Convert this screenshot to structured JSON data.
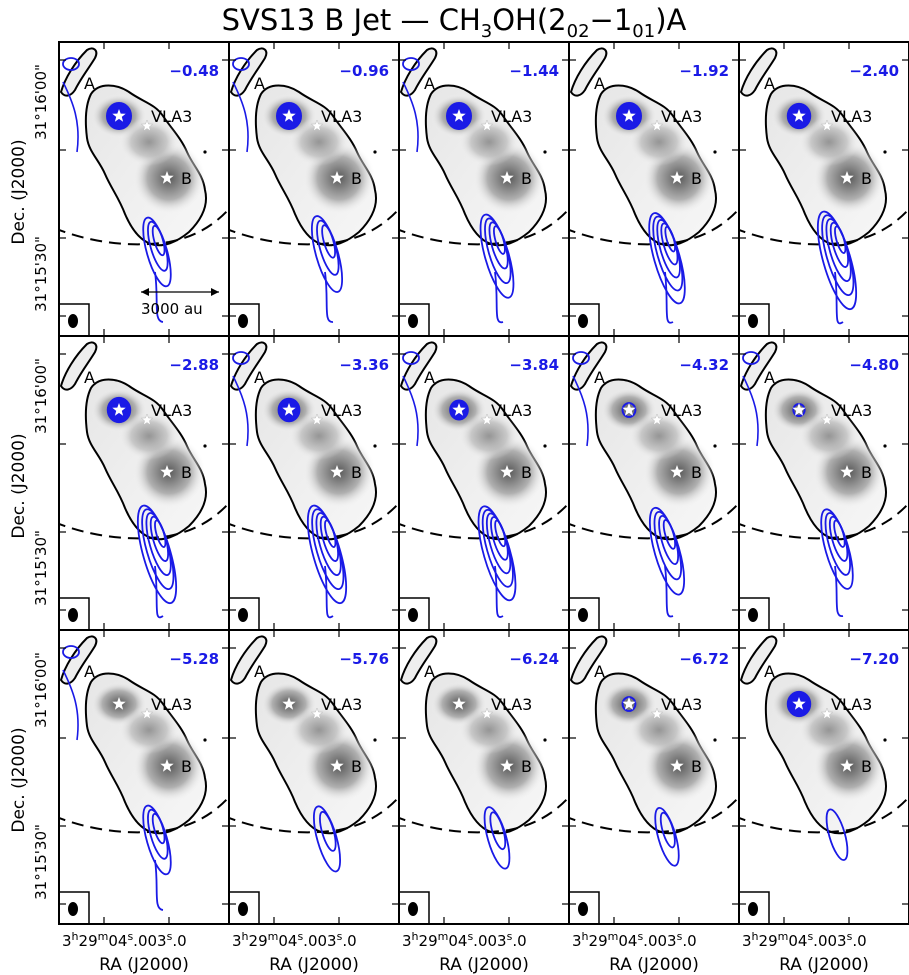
{
  "title": "SVS13 B Jet — CH",
  "title_sub3": "3",
  "title_mid": "OH(2",
  "title_sub02": "02",
  "title_dash": "−1",
  "title_sub01": "01",
  "title_end": ")A",
  "panels": [
    {
      "velocity": "−0.48",
      "jet_strength": 0.45,
      "a_spot": 1.0,
      "north_blobs": true,
      "scale_bar": true
    },
    {
      "velocity": "−0.96",
      "jet_strength": 0.55,
      "a_spot": 1.0,
      "north_blobs": true,
      "scale_bar": false
    },
    {
      "velocity": "−1.44",
      "jet_strength": 0.65,
      "a_spot": 1.0,
      "north_blobs": true,
      "scale_bar": false
    },
    {
      "velocity": "−1.92",
      "jet_strength": 0.75,
      "a_spot": 1.0,
      "north_blobs": false,
      "scale_bar": false
    },
    {
      "velocity": "−2.40",
      "jet_strength": 0.85,
      "a_spot": 0.9,
      "north_blobs": false,
      "scale_bar": false
    },
    {
      "velocity": "−2.88",
      "jet_strength": 0.85,
      "a_spot": 0.9,
      "north_blobs": false,
      "scale_bar": false
    },
    {
      "velocity": "−3.36",
      "jet_strength": 0.85,
      "a_spot": 0.8,
      "north_blobs": true,
      "scale_bar": false
    },
    {
      "velocity": "−3.84",
      "jet_strength": 0.8,
      "a_spot": 0.6,
      "north_blobs": true,
      "scale_bar": false
    },
    {
      "velocity": "−4.32",
      "jet_strength": 0.7,
      "a_spot": 0.3,
      "north_blobs": true,
      "scale_bar": false
    },
    {
      "velocity": "−4.80",
      "jet_strength": 0.6,
      "a_spot": 0.2,
      "north_blobs": true,
      "scale_bar": false
    },
    {
      "velocity": "−5.28",
      "jet_strength": 0.45,
      "a_spot": 0.0,
      "north_blobs": true,
      "scale_bar": false
    },
    {
      "velocity": "−5.76",
      "jet_strength": 0.4,
      "a_spot": 0.0,
      "north_blobs": false,
      "scale_bar": false
    },
    {
      "velocity": "−6.24",
      "jet_strength": 0.35,
      "a_spot": 0.0,
      "north_blobs": false,
      "scale_bar": false
    },
    {
      "velocity": "−6.72",
      "jet_strength": 0.3,
      "a_spot": 0.3,
      "north_blobs": false,
      "scale_bar": false
    },
    {
      "velocity": "−7.20",
      "jet_strength": 0.2,
      "a_spot": 0.9,
      "north_blobs": false,
      "scale_bar": false
    }
  ],
  "source_labels": {
    "a": "A",
    "vla3": "VLA3",
    "b": "B"
  },
  "scale_bar_label": "3000 au",
  "y_axis_label": "Dec. (J2000)",
  "y_ticks": [
    "31°16'00\"",
    "31°15'30\""
  ],
  "x_axis_label": "RA (J2000)",
  "x_tick_main": "3",
  "x_tick_h": "h",
  "x_tick_29": "29",
  "x_tick_m": "m",
  "x_tick_04": "04",
  "x_tick_s1": "s",
  "x_tick_00": ".00",
  "x_tick_30": "3",
  "x_tick_s2": "s",
  "x_tick_end": ".0",
  "colors": {
    "contour": "#1a1ae6",
    "frame": "#000000",
    "star": "#ffffff"
  }
}
